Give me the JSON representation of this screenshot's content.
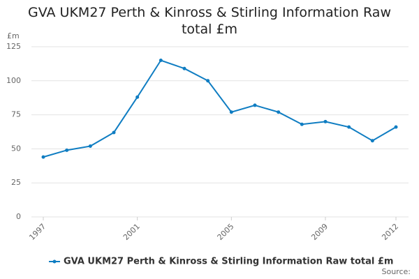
{
  "chart_data": {
    "type": "line",
    "title": "GVA UKM27 Perth & Kinross & Stirling Information Raw total £m",
    "y_unit": "£m",
    "source": "Source:",
    "x": [
      1997,
      1998,
      1999,
      2000,
      2001,
      2002,
      2003,
      2004,
      2005,
      2006,
      2007,
      2008,
      2009,
      2010,
      2011,
      2012
    ],
    "series": [
      {
        "name": "GVA UKM27 Perth & Kinross & Stirling Information Raw total £m",
        "color": "#0f7dc2",
        "values": [
          44,
          49,
          52,
          62,
          88,
          115,
          109,
          100,
          77,
          82,
          77,
          68,
          70,
          66,
          56,
          66
        ]
      }
    ],
    "xlim": [
      1997,
      2012
    ],
    "xticks": [
      1997,
      2001,
      2005,
      2009,
      2012
    ],
    "ylim": [
      0,
      125
    ],
    "yticks": [
      0,
      25,
      50,
      75,
      100,
      125
    ],
    "grid": true,
    "legend": "bottom"
  }
}
